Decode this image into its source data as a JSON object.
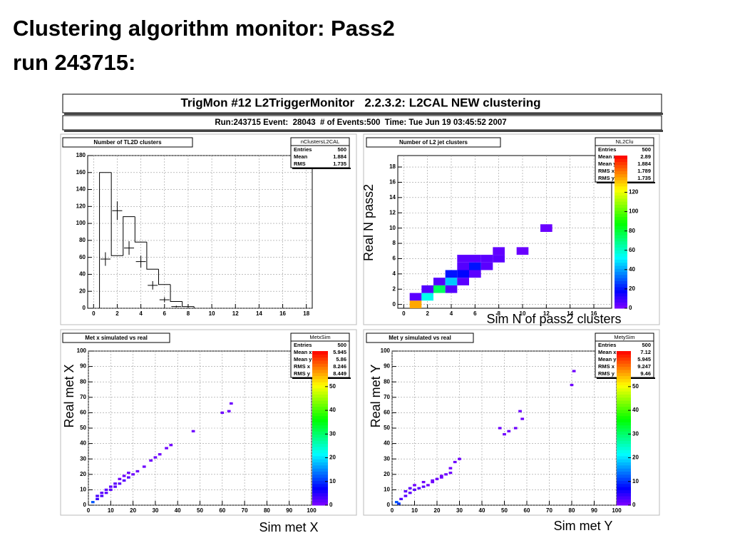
{
  "slide": {
    "title_lines": [
      "Clustering algorithm monitor: Pass2",
      "run 243715:"
    ]
  },
  "banner": {
    "title": "TrigMon #12 L2TriggerMonitor   2.2.3.2: L2CAL NEW clustering",
    "info": "Run:243715 Event:  28043  # of Events:500  Time: Tue Jun 19 03:45:52 2007"
  },
  "chart_data": [
    {
      "type": "histogram",
      "title": "Number of TL2D clusters",
      "color": "#000000",
      "grid": true,
      "stats": {
        "name": "nClustersL2CAL",
        "rows": [
          {
            "label": "Entries",
            "value": 500
          },
          {
            "label": "Mean",
            "value": 1.884
          },
          {
            "label": "RMS",
            "value": 1.735
          }
        ]
      },
      "bins": [
        0.5,
        1.5,
        2.5,
        3.5,
        4.5,
        5.5,
        6.5,
        7.5,
        8.5
      ],
      "counts": [
        160,
        62,
        108,
        78,
        46,
        28,
        8,
        2
      ],
      "points": {
        "x": [
          1,
          2,
          3,
          4,
          5,
          6,
          7
        ],
        "values": [
          58,
          115,
          71,
          55,
          27,
          10,
          2
        ],
        "errors": [
          8,
          11,
          8,
          7,
          5,
          3,
          1
        ]
      },
      "xlim": [
        -0.5,
        18.5
      ],
      "xticks": [
        0,
        2,
        4,
        6,
        8,
        10,
        12,
        14,
        16,
        18
      ],
      "ylim": [
        0,
        180
      ],
      "yticks": [
        0,
        20,
        40,
        60,
        80,
        100,
        120,
        140,
        160,
        180
      ]
    },
    {
      "type": "heatmap",
      "title": "Number of L2 jet clusters",
      "grid": true,
      "x_label": "Sim N of pass2 clusters",
      "y_label": "Real N pass2",
      "stats": {
        "name": "NL2Clu",
        "rows": [
          {
            "label": "Entries",
            "value": 500
          },
          {
            "label": "Mean x",
            "value": 2.89
          },
          {
            "label": "Mean y",
            "value": 1.884
          },
          {
            "label": "RMS x",
            "value": 1.789
          },
          {
            "label": "RMS y",
            "value": 1.735
          }
        ]
      },
      "cells": [
        [
          1,
          0,
          135
        ],
        [
          1,
          1,
          5
        ],
        [
          2,
          1,
          55
        ],
        [
          2,
          2,
          6
        ],
        [
          3,
          2,
          75
        ],
        [
          4,
          2,
          6
        ],
        [
          3,
          3,
          6
        ],
        [
          4,
          3,
          45
        ],
        [
          5,
          3,
          5
        ],
        [
          4,
          4,
          20
        ],
        [
          5,
          4,
          18
        ],
        [
          6,
          4,
          5
        ],
        [
          5,
          5,
          6
        ],
        [
          6,
          5,
          20
        ],
        [
          7,
          5,
          5
        ],
        [
          5,
          6,
          5
        ],
        [
          6,
          6,
          5
        ],
        [
          7,
          6,
          5
        ],
        [
          8,
          6,
          5
        ],
        [
          8,
          7,
          4
        ],
        [
          10,
          7,
          3
        ],
        [
          12,
          10,
          3
        ]
      ],
      "xlim": [
        -0.5,
        17.5
      ],
      "xticks": [
        0,
        2,
        4,
        6,
        8,
        10,
        12,
        14,
        16
      ],
      "ylim": [
        -0.5,
        19.5
      ],
      "yticks": [
        0,
        2,
        4,
        6,
        8,
        10,
        12,
        14,
        16,
        18
      ],
      "zlim": [
        0,
        158
      ],
      "zticks": [
        0,
        20,
        40,
        60,
        80,
        100,
        120
      ]
    },
    {
      "type": "heatmap",
      "title": "Met x simulated vs real",
      "grid": true,
      "x_label": "Sim met X",
      "y_label": "Real met X",
      "stats": {
        "name": "MetxSim",
        "rows": [
          {
            "label": "Entries",
            "value": 500
          },
          {
            "label": "Mean x",
            "value": 5.945
          },
          {
            "label": "Mean y",
            "value": 5.86
          },
          {
            "label": "RMS x",
            "value": 8.246
          },
          {
            "label": "RMS y",
            "value": 8.449
          }
        ]
      },
      "cells": [
        [
          2,
          2,
          12
        ],
        [
          4,
          4,
          4
        ],
        [
          6,
          6,
          3
        ],
        [
          8,
          8,
          2
        ],
        [
          10,
          10,
          2
        ],
        [
          12,
          12,
          2
        ],
        [
          14,
          14,
          2
        ],
        [
          16,
          16,
          2
        ],
        [
          18,
          18,
          2
        ],
        [
          20,
          20,
          1
        ],
        [
          22,
          22,
          1
        ],
        [
          25,
          25,
          1
        ],
        [
          28,
          29,
          1
        ],
        [
          30,
          31,
          1
        ],
        [
          32,
          33,
          1
        ],
        [
          35,
          37,
          1
        ],
        [
          37,
          39,
          1
        ],
        [
          47,
          48,
          1
        ],
        [
          60,
          60,
          1
        ],
        [
          63,
          61,
          1
        ],
        [
          64,
          66,
          1
        ],
        [
          4,
          6,
          3
        ],
        [
          6,
          8,
          2
        ],
        [
          8,
          10,
          2
        ],
        [
          10,
          12,
          2
        ],
        [
          12,
          14,
          2
        ],
        [
          14,
          17,
          1
        ],
        [
          16,
          19,
          1
        ],
        [
          18,
          21,
          1
        ]
      ],
      "xlim": [
        0,
        100
      ],
      "xticks": [
        0,
        10,
        20,
        30,
        40,
        50,
        60,
        70,
        80,
        90,
        100
      ],
      "ylim": [
        0,
        100
      ],
      "yticks": [
        0,
        10,
        20,
        30,
        40,
        50,
        60,
        70,
        80,
        90,
        100
      ],
      "zlim": [
        0,
        65
      ],
      "zticks": [
        0,
        10,
        20,
        30,
        40,
        50
      ]
    },
    {
      "type": "heatmap",
      "title": "Met y simulated vs real",
      "grid": true,
      "x_label": "Sim met Y",
      "y_label": "Real met Y",
      "stats": {
        "name": "MetySim",
        "rows": [
          {
            "label": "Entries",
            "value": 500
          },
          {
            "label": "Mean x",
            "value": 7.12
          },
          {
            "label": "Mean y",
            "value": 5.945
          },
          {
            "label": "RMS x",
            "value": 9.247
          },
          {
            "label": "RMS y",
            "value": 9.46
          }
        ]
      },
      "cells": [
        [
          2,
          2,
          12
        ],
        [
          3,
          1,
          10
        ],
        [
          4,
          4,
          3
        ],
        [
          6,
          6,
          2
        ],
        [
          8,
          8,
          2
        ],
        [
          10,
          10,
          2
        ],
        [
          12,
          11,
          2
        ],
        [
          14,
          12,
          2
        ],
        [
          16,
          13,
          1
        ],
        [
          18,
          15,
          1
        ],
        [
          20,
          17,
          1
        ],
        [
          22,
          19,
          1
        ],
        [
          24,
          20,
          1
        ],
        [
          26,
          21,
          1
        ],
        [
          6,
          9,
          2
        ],
        [
          8,
          11,
          2
        ],
        [
          10,
          13,
          1
        ],
        [
          14,
          15,
          1
        ],
        [
          18,
          16,
          1
        ],
        [
          22,
          18,
          1
        ],
        [
          26,
          24,
          1
        ],
        [
          28,
          28,
          1
        ],
        [
          30,
          30,
          1
        ],
        [
          48,
          50,
          1
        ],
        [
          50,
          46,
          1
        ],
        [
          52,
          48,
          1
        ],
        [
          55,
          50,
          1
        ],
        [
          57,
          61,
          1
        ],
        [
          58,
          56,
          1
        ],
        [
          80,
          78,
          1
        ],
        [
          81,
          87,
          1
        ]
      ],
      "xlim": [
        0,
        100
      ],
      "xticks": [
        0,
        10,
        20,
        30,
        40,
        50,
        60,
        70,
        80,
        90,
        100
      ],
      "ylim": [
        0,
        100
      ],
      "yticks": [
        0,
        10,
        20,
        30,
        40,
        50,
        60,
        70,
        80,
        90,
        100
      ],
      "zlim": [
        0,
        65
      ],
      "zticks": [
        0,
        10,
        20,
        30,
        40,
        50
      ]
    }
  ]
}
